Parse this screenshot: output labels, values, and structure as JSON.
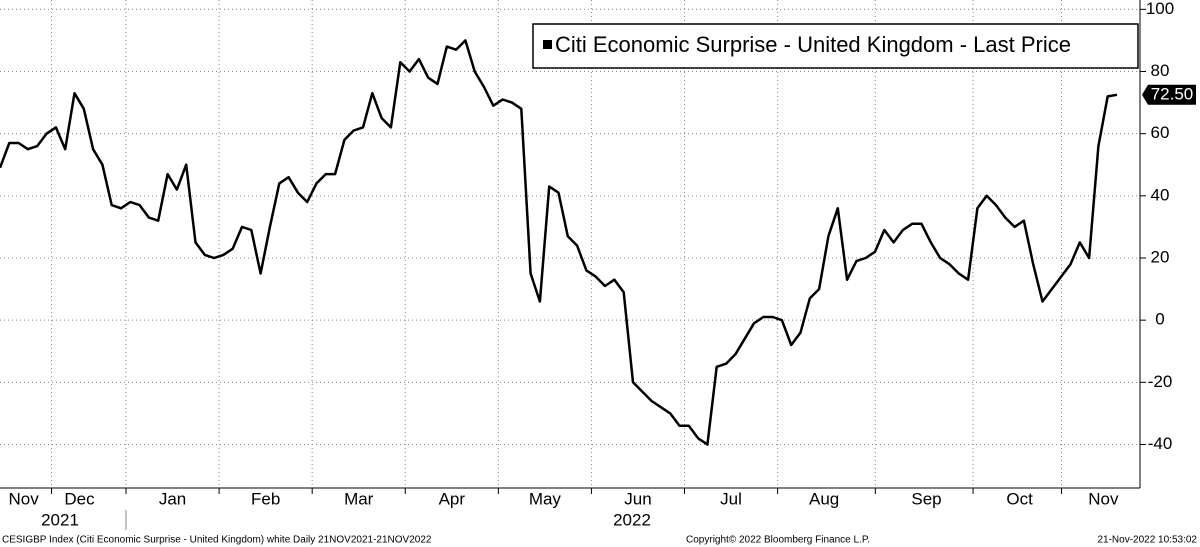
{
  "chart_data": {
    "type": "line",
    "series": [
      {
        "name": "Citi Economic Surprise - United Kingdom - Last Price",
        "color": "#000000",
        "values": [
          49,
          57,
          57,
          55,
          56,
          60,
          62,
          55,
          73,
          68,
          55,
          50,
          37,
          36,
          38,
          37,
          33,
          32,
          47,
          42,
          50,
          25,
          21,
          20,
          21,
          23,
          30,
          29,
          15,
          30,
          44,
          46,
          41,
          38,
          44,
          47,
          47,
          58,
          61,
          62,
          73,
          65,
          62,
          83,
          80,
          84,
          78,
          76,
          88,
          87,
          90,
          80,
          75,
          69,
          71,
          70,
          68,
          15,
          6,
          43,
          41,
          27,
          24,
          16,
          14,
          11,
          13,
          9,
          -20,
          -23,
          -26,
          -28,
          -30,
          -34,
          -34,
          -38,
          -40,
          -15,
          -14,
          -11,
          -6,
          -1,
          1,
          1,
          0,
          -8,
          -4,
          7,
          10,
          27,
          36,
          13,
          19,
          20,
          22,
          29,
          25,
          29,
          31,
          31,
          25,
          20,
          18,
          15,
          13,
          36,
          40,
          37,
          33,
          30,
          32,
          18,
          6,
          10,
          14,
          18,
          25,
          20,
          56,
          72,
          72.5
        ]
      }
    ],
    "categories": [
      null,
      null,
      "Nov",
      null,
      null,
      null,
      null,
      null,
      "Dec",
      null,
      null,
      null,
      null,
      null,
      null,
      null,
      null,
      null,
      "Jan",
      null,
      null,
      null,
      null,
      null,
      null,
      null,
      null,
      null,
      "Feb",
      null,
      null,
      null,
      null,
      null,
      null,
      null,
      null,
      null,
      "Mar",
      null,
      null,
      null,
      null,
      null,
      null,
      null,
      null,
      null,
      "Apr",
      null,
      null,
      null,
      null,
      null,
      null,
      null,
      null,
      null,
      "May",
      null,
      null,
      null,
      null,
      null,
      null,
      null,
      null,
      null,
      "Jun",
      null,
      null,
      null,
      null,
      null,
      null,
      null,
      null,
      null,
      "Jul",
      null,
      null,
      null,
      null,
      null,
      null,
      null,
      null,
      null,
      "Aug",
      null,
      null,
      null,
      null,
      null,
      null,
      null,
      null,
      null,
      null,
      "Sep",
      null,
      null,
      null,
      null,
      null,
      null,
      null,
      null,
      null,
      "Oct",
      null,
      null,
      null,
      null,
      null,
      null,
      null,
      null,
      "Nov",
      null,
      null
    ],
    "year_labels": [
      "2021",
      "2022"
    ],
    "last_value_label": "72.50",
    "ylim": [
      -54,
      103
    ],
    "yticks": [
      -40,
      -20,
      0,
      20,
      40,
      60,
      80,
      100
    ],
    "grid": true,
    "legend": "top-right",
    "footer_left": "CESIGBP Index (Citi Economic Surprise - United Kingdom) white  Daily 21NOV2021-21NOV2022",
    "footer_center": "Copyright© 2022 Bloomberg Finance L.P.",
    "footer_right": "21-Nov-2022 10:53:02"
  }
}
